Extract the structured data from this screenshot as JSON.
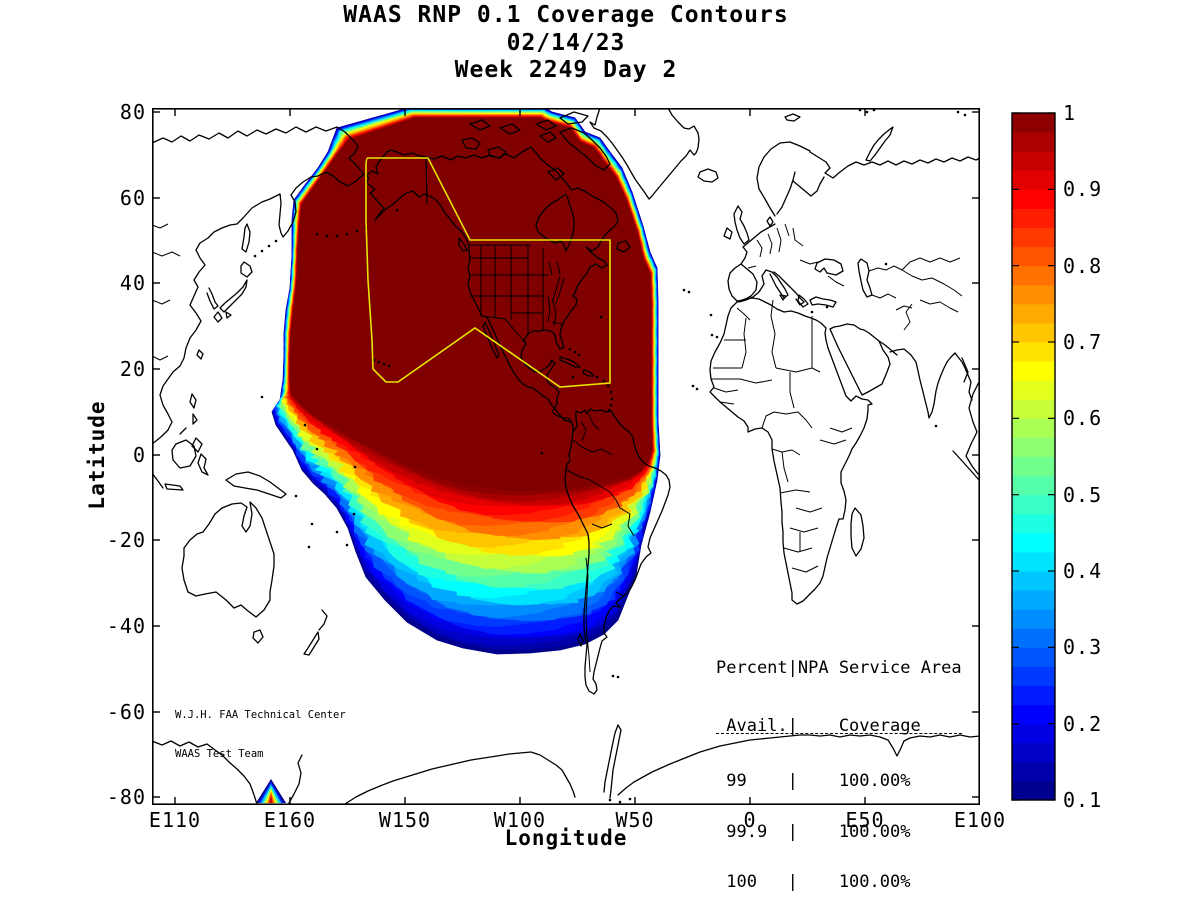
{
  "title": {
    "line1": "WAAS RNP 0.1 Coverage Contours",
    "line2": "02/14/23",
    "line3": "Week 2249 Day 2"
  },
  "axes": {
    "xlabel": "Longitude",
    "ylabel": "Latitude",
    "x_ticks": [
      "E110",
      "E160",
      "W150",
      "W100",
      "W50",
      "0",
      "E50",
      "E100"
    ],
    "y_ticks": [
      "80",
      "60",
      "40",
      "20",
      "0",
      "-20",
      "-40",
      "-60",
      "-80"
    ]
  },
  "colorbar": {
    "tick_labels": [
      "1",
      "0.9",
      "0.8",
      "0.7",
      "0.6",
      "0.5",
      "0.4",
      "0.3",
      "0.2",
      "0.1"
    ],
    "min": 0.1,
    "max": 1,
    "colormap": "jet"
  },
  "annotations": {
    "credit_line1": "W.J.H. FAA Technical Center",
    "credit_line2": "WAAS Test Team",
    "availability_table": {
      "header1": "Percent|NPA Service Area",
      "header2": " Avail.|    Coverage    ",
      "rows": [
        " 99    |    100.00%",
        " 99.9  |    100.00%",
        " 100   |    100.00%"
      ]
    }
  },
  "colors": {
    "service_area_outline": "#e6e600",
    "coastline": "#000000",
    "max_fill": "#800000",
    "min_fill": "#000080"
  },
  "chart_data": {
    "type": "heatmap",
    "subtype": "filled-contour-geographic-map",
    "title": "WAAS RNP 0.1 Coverage Contours",
    "date": "02/14/23",
    "gps_week": "2249",
    "gps_day": "2",
    "xlabel": "Longitude",
    "ylabel": "Latitude",
    "x_tick_labels": [
      "E110",
      "E160",
      "W150",
      "W100",
      "W50",
      "0",
      "E50",
      "E100"
    ],
    "y_tick_labels": [
      80,
      60,
      40,
      20,
      0,
      -20,
      -40,
      -60,
      -80
    ],
    "map_projection": "equirectangular, Pacific-centered, spans 360 deg starting at E100",
    "lat_range": [
      -81,
      81
    ],
    "contour_range": [
      0.1,
      1.0
    ],
    "contour_interval": 0.025,
    "colorbar_ticks": [
      1,
      0.9,
      0.8,
      0.7,
      0.6,
      0.5,
      0.4,
      0.3,
      0.2,
      0.1
    ],
    "colormap": "jet (dark blue 0.1 -> cyan -> yellow -> red -> dark red 1.0)",
    "coverage_summary": [
      {
        "percent_avail": "99",
        "npa_service_area_coverage": "100.00%"
      },
      {
        "percent_avail": "99.9",
        "npa_service_area_coverage": "100.00%"
      },
      {
        "percent_avail": "100",
        "npa_service_area_coverage": "100.00%"
      }
    ],
    "description": "Dark-red (availability ~1.0) core covers North America, Central America and the NE Pacific inside the yellow NPA service-area polygon; coverage grades through red, orange, yellow, cyan and blue (~0.1) toward the south Pacific and southern South America; a small rainbow contour spike sits near the bottom axis at ~E155; world coastlines drawn in black."
  }
}
